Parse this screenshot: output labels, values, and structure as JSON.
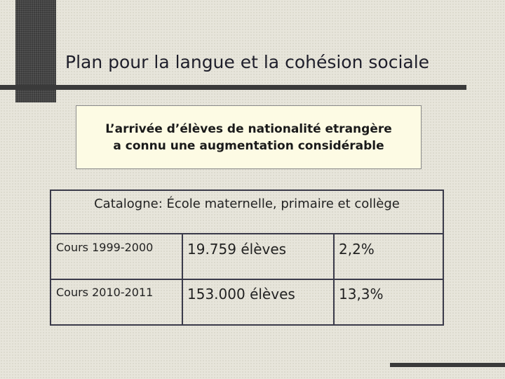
{
  "title": "Plan pour la langue et la cohésion sociale",
  "note": {
    "lines": [
      "L’arrivée d’élèves de nationalité etrangère",
      "a connu une augmentation considérable"
    ]
  },
  "table": {
    "header": "Catalogne: École maternelle, primaire et collège",
    "rows": [
      [
        "Cours 1999-2000",
        "19.759 élèves",
        "2,2%"
      ],
      [
        "Cours 2010-2011",
        "153.000 élèves",
        "13,3%"
      ]
    ]
  }
}
